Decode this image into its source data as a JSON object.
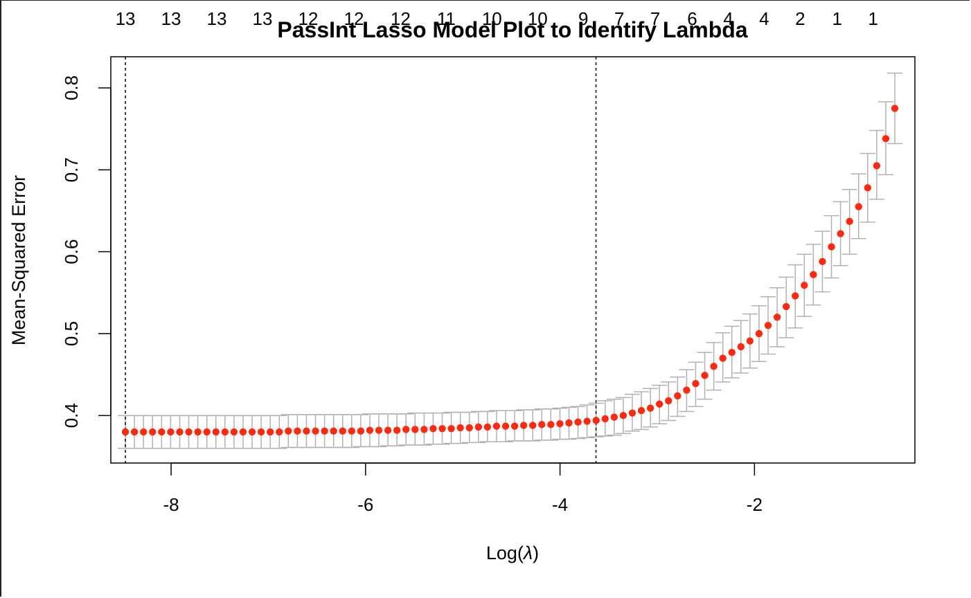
{
  "chart_data": {
    "type": "scatter",
    "title": "PassInt Lasso Model Plot to Identify Lambda",
    "xlabel_prefix": "Log(",
    "xlabel_symbol": "λ",
    "xlabel_suffix": ")",
    "ylabel": "Mean-Squared Error",
    "xlim": [
      -8.62,
      -0.35
    ],
    "ylim": [
      0.342,
      0.838
    ],
    "x_ticks": [
      -8,
      -6,
      -4,
      -2
    ],
    "x_tick_labels": [
      "-8",
      "-6",
      "-4",
      "-2"
    ],
    "y_ticks": [
      0.4,
      0.5,
      0.6,
      0.7,
      0.8
    ],
    "y_tick_labels": [
      "0.4",
      "0.5",
      "0.6",
      "0.7",
      "0.8"
    ],
    "lambda_min_log": -8.47,
    "lambda_1se_log": -3.63,
    "top_counts": [
      {
        "x": -8.47,
        "label": "13"
      },
      {
        "x": -8.0,
        "label": "13"
      },
      {
        "x": -7.53,
        "label": "13"
      },
      {
        "x": -7.06,
        "label": "13"
      },
      {
        "x": -6.59,
        "label": "12"
      },
      {
        "x": -6.12,
        "label": "12"
      },
      {
        "x": -5.64,
        "label": "12"
      },
      {
        "x": -5.17,
        "label": "11"
      },
      {
        "x": -4.7,
        "label": "10"
      },
      {
        "x": -4.23,
        "label": "10"
      },
      {
        "x": -3.76,
        "label": "9"
      },
      {
        "x": -3.39,
        "label": "7"
      },
      {
        "x": -3.02,
        "label": "7"
      },
      {
        "x": -2.64,
        "label": "6"
      },
      {
        "x": -2.27,
        "label": "4"
      },
      {
        "x": -1.9,
        "label": "4"
      },
      {
        "x": -1.53,
        "label": "2"
      },
      {
        "x": -1.15,
        "label": "1"
      },
      {
        "x": -0.78,
        "label": "1"
      }
    ],
    "series": [
      {
        "x_start": -8.47,
        "x_step": 0.0931,
        "mse": [
          0.38,
          0.38,
          0.38,
          0.38,
          0.38,
          0.38,
          0.38,
          0.38,
          0.38,
          0.38,
          0.38,
          0.38,
          0.38,
          0.38,
          0.38,
          0.38,
          0.38,
          0.38,
          0.381,
          0.381,
          0.381,
          0.381,
          0.381,
          0.381,
          0.381,
          0.381,
          0.381,
          0.382,
          0.382,
          0.382,
          0.382,
          0.383,
          0.383,
          0.383,
          0.384,
          0.384,
          0.384,
          0.385,
          0.385,
          0.386,
          0.386,
          0.387,
          0.387,
          0.387,
          0.388,
          0.388,
          0.389,
          0.389,
          0.39,
          0.391,
          0.392,
          0.393,
          0.394,
          0.396,
          0.398,
          0.4,
          0.403,
          0.406,
          0.409,
          0.414,
          0.418,
          0.424,
          0.431,
          0.439,
          0.449,
          0.46,
          0.47,
          0.477,
          0.484,
          0.491,
          0.5,
          0.51,
          0.52,
          0.533,
          0.546,
          0.559,
          0.572,
          0.588,
          0.606,
          0.622,
          0.637,
          0.655,
          0.678,
          0.705,
          0.738,
          0.775
        ],
        "se_low": [
          0.36,
          0.36,
          0.36,
          0.36,
          0.36,
          0.36,
          0.36,
          0.36,
          0.36,
          0.36,
          0.36,
          0.36,
          0.36,
          0.36,
          0.36,
          0.36,
          0.36,
          0.36,
          0.361,
          0.361,
          0.361,
          0.361,
          0.361,
          0.361,
          0.361,
          0.361,
          0.362,
          0.362,
          0.362,
          0.363,
          0.363,
          0.364,
          0.364,
          0.364,
          0.365,
          0.365,
          0.366,
          0.366,
          0.367,
          0.367,
          0.368,
          0.368,
          0.368,
          0.369,
          0.369,
          0.369,
          0.37,
          0.37,
          0.371,
          0.371,
          0.372,
          0.373,
          0.374,
          0.375,
          0.376,
          0.378,
          0.381,
          0.383,
          0.386,
          0.39,
          0.394,
          0.399,
          0.405,
          0.411,
          0.42,
          0.431,
          0.441,
          0.446,
          0.452,
          0.458,
          0.466,
          0.475,
          0.484,
          0.495,
          0.507,
          0.521,
          0.535,
          0.551,
          0.568,
          0.583,
          0.597,
          0.616,
          0.636,
          0.664,
          0.694,
          0.732
        ],
        "se_high": [
          0.4,
          0.4,
          0.4,
          0.4,
          0.4,
          0.4,
          0.4,
          0.4,
          0.4,
          0.4,
          0.4,
          0.4,
          0.4,
          0.4,
          0.4,
          0.4,
          0.4,
          0.4,
          0.401,
          0.401,
          0.401,
          0.401,
          0.401,
          0.401,
          0.401,
          0.401,
          0.401,
          0.402,
          0.402,
          0.402,
          0.402,
          0.402,
          0.403,
          0.403,
          0.403,
          0.403,
          0.404,
          0.404,
          0.404,
          0.405,
          0.405,
          0.406,
          0.406,
          0.406,
          0.407,
          0.407,
          0.408,
          0.408,
          0.409,
          0.41,
          0.411,
          0.413,
          0.415,
          0.418,
          0.42,
          0.422,
          0.426,
          0.429,
          0.433,
          0.437,
          0.441,
          0.447,
          0.456,
          0.465,
          0.477,
          0.489,
          0.501,
          0.509,
          0.516,
          0.524,
          0.534,
          0.545,
          0.556,
          0.569,
          0.584,
          0.597,
          0.609,
          0.625,
          0.644,
          0.661,
          0.676,
          0.695,
          0.72,
          0.748,
          0.783,
          0.818
        ]
      }
    ],
    "colors": {
      "point": "#ff2a12",
      "error_bar": "#b0b0b0",
      "axis": "#000000"
    }
  }
}
